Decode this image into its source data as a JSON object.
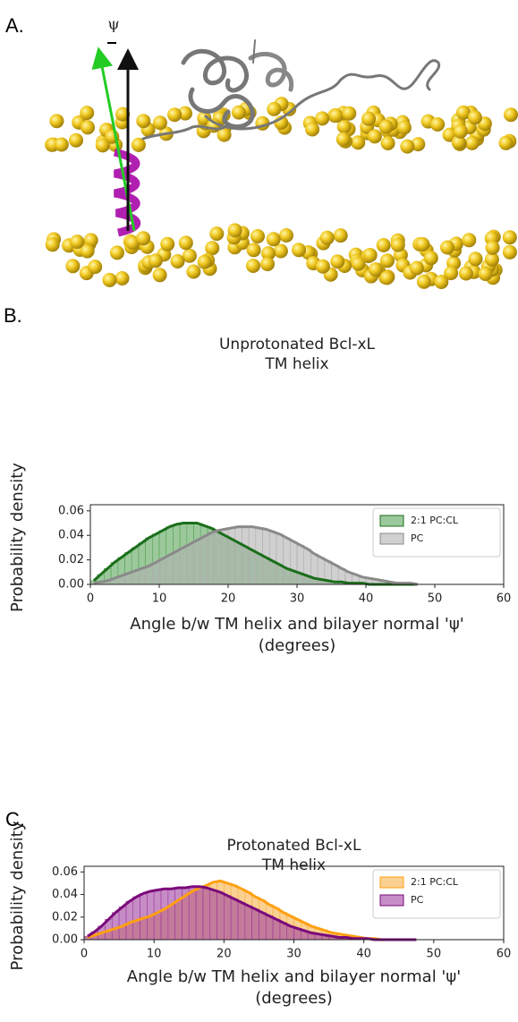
{
  "panels": [
    "A.",
    "B.",
    "C."
  ],
  "psi_label": "ψ",
  "chart_data": [
    {
      "type": "histogram",
      "title": [
        "Unprotonated Bcl-xL",
        "TM helix"
      ],
      "xlabel": [
        "Angle b/w TM helix and bilayer normal 'ψ'",
        "(degrees)"
      ],
      "ylabel": "Probability density",
      "bins": [
        0,
        1,
        2,
        3,
        4,
        5,
        6,
        7,
        8,
        9,
        10,
        11,
        12,
        13,
        14,
        15,
        16,
        17,
        18,
        19,
        20,
        21,
        22,
        23,
        24,
        25,
        26,
        27,
        28,
        29,
        30,
        31,
        32,
        33,
        34,
        35,
        36,
        37,
        38,
        39,
        40,
        41,
        42,
        43,
        44,
        45,
        46,
        47,
        48
      ],
      "series": [
        {
          "name": "2:1 PC:CL",
          "color": "#5aa55a",
          "line_color": "#1b6e1b",
          "values": [
            0.003,
            0.008,
            0.013,
            0.018,
            0.022,
            0.026,
            0.03,
            0.034,
            0.038,
            0.041,
            0.044,
            0.047,
            0.049,
            0.05,
            0.05,
            0.05,
            0.048,
            0.046,
            0.043,
            0.04,
            0.037,
            0.034,
            0.031,
            0.028,
            0.025,
            0.022,
            0.019,
            0.016,
            0.013,
            0.011,
            0.009,
            0.007,
            0.005,
            0.004,
            0.003,
            0.002,
            0.002,
            0.001,
            0.001,
            0.001,
            0,
            0,
            0,
            0,
            0,
            0,
            0,
            0
          ]
        },
        {
          "name": "PC",
          "color": "#b0b0b0",
          "line_color": "#8a8a8a",
          "values": [
            0.001,
            0.002,
            0.003,
            0.005,
            0.007,
            0.009,
            0.011,
            0.013,
            0.015,
            0.018,
            0.021,
            0.024,
            0.027,
            0.03,
            0.033,
            0.036,
            0.039,
            0.042,
            0.044,
            0.045,
            0.046,
            0.047,
            0.047,
            0.047,
            0.046,
            0.045,
            0.043,
            0.041,
            0.038,
            0.035,
            0.032,
            0.029,
            0.025,
            0.022,
            0.019,
            0.016,
            0.013,
            0.01,
            0.008,
            0.006,
            0.005,
            0.004,
            0.003,
            0.002,
            0.001,
            0.001,
            0.001,
            0
          ]
        }
      ],
      "xlim": [
        0,
        60
      ],
      "xticks": [
        0,
        10,
        20,
        30,
        40,
        50,
        60
      ],
      "ylim": [
        0,
        0.065
      ],
      "yticks": [
        {
          "value": 0,
          "label": "0.00"
        },
        0.02,
        0.04,
        0.06
      ],
      "legend": "upper right"
    },
    {
      "type": "histogram",
      "title": [
        "Protonated Bcl-xL",
        "TM helix"
      ],
      "xlabel": [
        "Angle b/w TM helix and bilayer normal 'ψ'",
        "(degrees)"
      ],
      "ylabel": "Probability density",
      "bins": [
        0,
        1,
        2,
        3,
        4,
        5,
        6,
        7,
        8,
        9,
        10,
        11,
        12,
        13,
        14,
        15,
        16,
        17,
        18,
        19,
        20,
        21,
        22,
        23,
        24,
        25,
        26,
        27,
        28,
        29,
        30,
        31,
        32,
        33,
        34,
        35,
        36,
        37,
        38,
        39,
        40,
        41,
        42,
        43,
        44,
        45,
        46,
        47,
        48
      ],
      "series": [
        {
          "name": "2:1 PC:CL",
          "color": "#f7b34a",
          "line_color": "#ffa010",
          "values": [
            0.002,
            0.004,
            0.006,
            0.008,
            0.01,
            0.012,
            0.015,
            0.017,
            0.019,
            0.021,
            0.024,
            0.027,
            0.031,
            0.035,
            0.039,
            0.043,
            0.046,
            0.048,
            0.051,
            0.052,
            0.05,
            0.048,
            0.045,
            0.042,
            0.038,
            0.035,
            0.031,
            0.028,
            0.024,
            0.021,
            0.018,
            0.015,
            0.012,
            0.01,
            0.008,
            0.006,
            0.005,
            0.004,
            0.003,
            0.002,
            0.001,
            0.001,
            0,
            0,
            0,
            0,
            0,
            0
          ]
        },
        {
          "name": "PC",
          "color": "#a040a0",
          "line_color": "#7a0a7a",
          "values": [
            0.003,
            0.007,
            0.012,
            0.018,
            0.024,
            0.029,
            0.034,
            0.038,
            0.041,
            0.043,
            0.044,
            0.045,
            0.045,
            0.046,
            0.046,
            0.047,
            0.047,
            0.046,
            0.044,
            0.042,
            0.039,
            0.036,
            0.033,
            0.03,
            0.027,
            0.024,
            0.021,
            0.018,
            0.015,
            0.012,
            0.01,
            0.008,
            0.006,
            0.005,
            0.004,
            0.003,
            0.002,
            0.002,
            0.001,
            0.001,
            0.001,
            0,
            0,
            0,
            0,
            0,
            0,
            0
          ]
        }
      ],
      "xlim": [
        0,
        60
      ],
      "xticks": [
        0,
        10,
        20,
        30,
        40,
        50,
        60
      ],
      "ylim": [
        0,
        0.065
      ],
      "yticks": [
        {
          "value": 0,
          "label": "0.00"
        },
        0.02,
        0.04,
        0.06
      ],
      "legend": "upper right"
    }
  ]
}
